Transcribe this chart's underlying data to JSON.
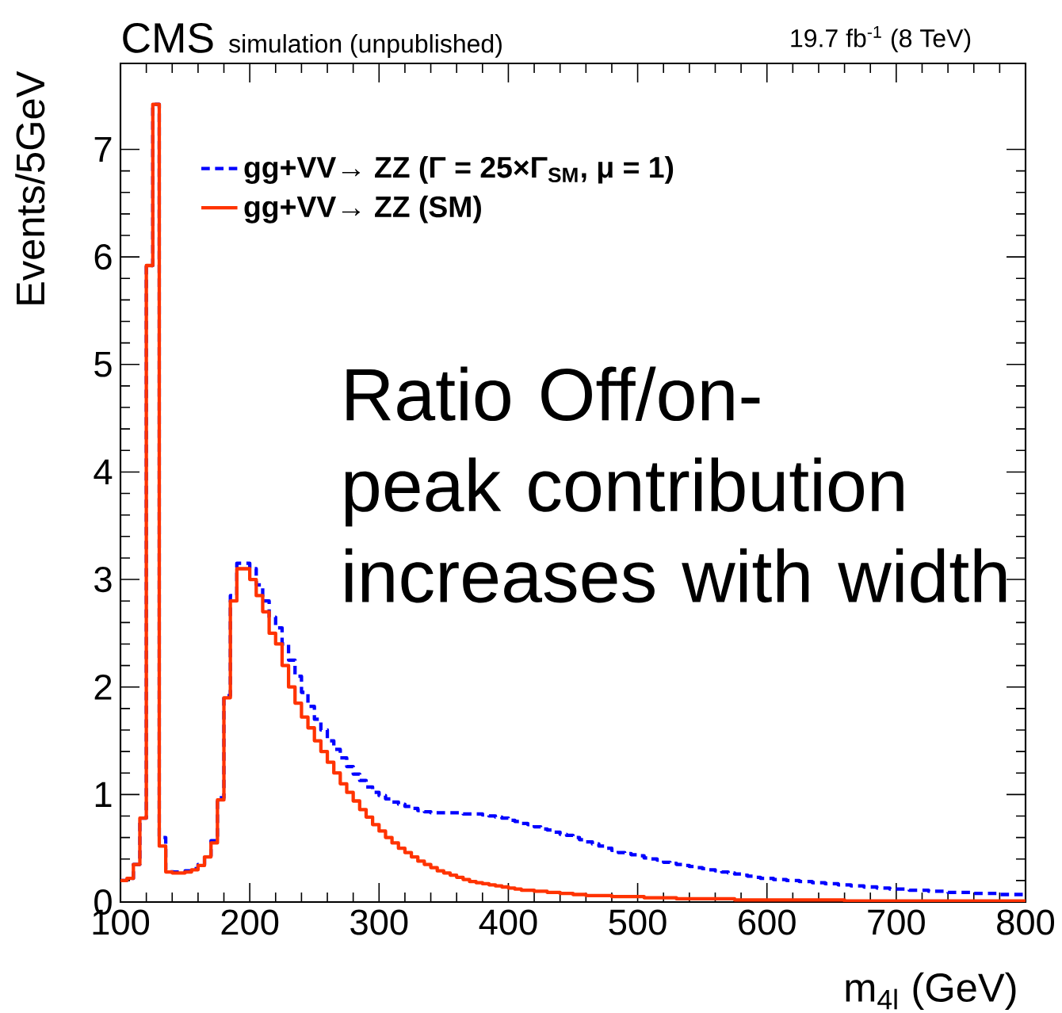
{
  "chart_data": {
    "type": "histogram",
    "title": "CMS",
    "subtitle": "simulation (unpublished)",
    "annotations": [
      "19.7 fb$^{-1}$ (8 TeV)",
      "Ratio Off/on-peak contribution increases with width"
    ],
    "xlabel": "m$_{4l}$ (GeV)",
    "ylabel": "Events/5GeV",
    "bins": [
      100,
      105,
      110,
      115,
      120,
      125,
      130,
      135,
      140,
      145,
      150,
      155,
      160,
      165,
      170,
      175,
      180,
      185,
      190,
      195,
      200,
      205,
      210,
      215,
      220,
      225,
      230,
      235,
      240,
      245,
      250,
      255,
      260,
      265,
      270,
      275,
      280,
      285,
      290,
      295,
      300,
      305,
      310,
      315,
      320,
      325,
      330,
      335,
      340,
      345,
      350,
      355,
      360,
      365,
      370,
      375,
      380,
      385,
      390,
      395,
      400,
      405,
      410,
      415,
      420,
      425,
      430,
      435,
      440,
      445,
      450,
      455,
      460,
      465,
      470,
      475,
      480,
      485,
      490,
      495,
      500,
      505,
      510,
      515,
      520,
      525,
      530,
      535,
      540,
      545,
      550,
      555,
      560,
      565,
      570,
      575,
      580,
      585,
      590,
      595,
      600,
      605,
      610,
      615,
      620,
      625,
      630,
      635,
      640,
      645,
      650,
      655,
      660,
      665,
      670,
      675,
      680,
      685,
      690,
      695,
      700,
      705,
      710,
      715,
      720,
      725,
      730,
      735,
      740,
      745,
      750,
      755,
      760,
      765,
      770,
      775,
      780,
      785,
      790,
      795,
      800
    ],
    "series": [
      {
        "name": "gg+VV→ ZZ (Γ = 25×Γ$_{SM}$, μ = 1)",
        "color": "#0000ff",
        "line_style": "dashed",
        "values": [
          0.2,
          0.22,
          0.35,
          0.78,
          5.92,
          7.42,
          0.6,
          0.3,
          0.28,
          0.28,
          0.29,
          0.31,
          0.35,
          0.43,
          0.57,
          0.97,
          1.92,
          2.85,
          3.15,
          3.15,
          3.1,
          2.95,
          2.8,
          2.65,
          2.55,
          2.4,
          2.25,
          2.1,
          1.95,
          1.82,
          1.7,
          1.6,
          1.5,
          1.42,
          1.34,
          1.26,
          1.19,
          1.13,
          1.07,
          1.02,
          0.99,
          0.96,
          0.93,
          0.91,
          0.89,
          0.87,
          0.85,
          0.84,
          0.83,
          0.83,
          0.83,
          0.83,
          0.83,
          0.82,
          0.82,
          0.82,
          0.81,
          0.8,
          0.79,
          0.78,
          0.76,
          0.75,
          0.73,
          0.72,
          0.7,
          0.68,
          0.67,
          0.65,
          0.63,
          0.62,
          0.6,
          0.58,
          0.56,
          0.54,
          0.52,
          0.5,
          0.48,
          0.46,
          0.45,
          0.44,
          0.43,
          0.41,
          0.4,
          0.39,
          0.37,
          0.36,
          0.35,
          0.34,
          0.33,
          0.32,
          0.31,
          0.3,
          0.29,
          0.28,
          0.27,
          0.26,
          0.25,
          0.24,
          0.23,
          0.22,
          0.22,
          0.21,
          0.21,
          0.2,
          0.2,
          0.19,
          0.19,
          0.18,
          0.18,
          0.17,
          0.17,
          0.16,
          0.16,
          0.15,
          0.15,
          0.14,
          0.14,
          0.13,
          0.13,
          0.12,
          0.12,
          0.12,
          0.11,
          0.11,
          0.11,
          0.1,
          0.1,
          0.1,
          0.09,
          0.09,
          0.09,
          0.09,
          0.08,
          0.08,
          0.08,
          0.08,
          0.07,
          0.07,
          0.07,
          0.07
        ]
      },
      {
        "name": "gg+VV→ ZZ (SM)",
        "color": "#ff3300",
        "line_style": "solid",
        "values": [
          0.2,
          0.22,
          0.35,
          0.78,
          5.92,
          7.42,
          0.52,
          0.28,
          0.27,
          0.27,
          0.28,
          0.3,
          0.34,
          0.42,
          0.55,
          0.95,
          1.9,
          2.8,
          3.1,
          3.1,
          3.0,
          2.85,
          2.7,
          2.5,
          2.4,
          2.2,
          2.0,
          1.85,
          1.72,
          1.62,
          1.5,
          1.4,
          1.3,
          1.2,
          1.1,
          1.02,
          0.94,
          0.86,
          0.79,
          0.72,
          0.66,
          0.6,
          0.55,
          0.5,
          0.46,
          0.42,
          0.38,
          0.35,
          0.32,
          0.29,
          0.27,
          0.25,
          0.23,
          0.21,
          0.19,
          0.18,
          0.17,
          0.16,
          0.15,
          0.14,
          0.13,
          0.12,
          0.11,
          0.11,
          0.1,
          0.1,
          0.09,
          0.09,
          0.08,
          0.08,
          0.07,
          0.07,
          0.06,
          0.06,
          0.06,
          0.06,
          0.05,
          0.05,
          0.05,
          0.05,
          0.05,
          0.04,
          0.04,
          0.04,
          0.04,
          0.04,
          0.03,
          0.03,
          0.03,
          0.03,
          0.03,
          0.03,
          0.03,
          0.03,
          0.03,
          0.02,
          0.02,
          0.02,
          0.02,
          0.02,
          0.02,
          0.02,
          0.02,
          0.02,
          0.02,
          0.02,
          0.02,
          0.02,
          0.02,
          0.02,
          0.02,
          0.02,
          0.01,
          0.01,
          0.01,
          0.01,
          0.01,
          0.01,
          0.01,
          0.01,
          0.01,
          0.01,
          0.01,
          0.01,
          0.01,
          0.01,
          0.01,
          0.01,
          0.01,
          0.01,
          0.01,
          0.01,
          0.01,
          0.01,
          0.01,
          0.01,
          0.01,
          0.01,
          0.01,
          0.01
        ]
      }
    ],
    "xlim": [
      100,
      800
    ],
    "ylim": [
      0,
      7.8
    ],
    "xticks": [
      100,
      200,
      300,
      400,
      500,
      600,
      700,
      800
    ],
    "yticks": [
      0,
      1,
      2,
      3,
      4,
      5,
      6,
      7
    ],
    "legend": "top left"
  }
}
